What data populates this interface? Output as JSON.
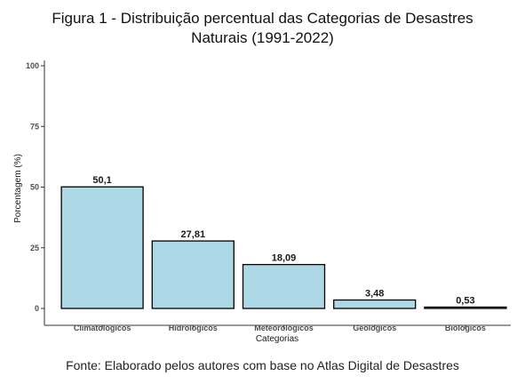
{
  "figure": {
    "title_line1": "Figura 1 - Distribuição percentual das Categorias de Desastres",
    "title_line2": "Naturais (1991-2022)",
    "source": "Fonte: Elaborado pelos autores com base no Atlas Digital de Desastres"
  },
  "chart_data": {
    "type": "bar",
    "categories": [
      "Climatológicos",
      "Hidrológicos",
      "Meteorológicos",
      "Geológicos",
      "Biológicos"
    ],
    "values": [
      50.1,
      27.81,
      18.09,
      3.48,
      0.53
    ],
    "data_labels": [
      "50,1",
      "27,81",
      "18,09",
      "3,48",
      "0,53"
    ],
    "xlabel": "Categorias",
    "ylabel": "Porcentagem (%)",
    "ylim": [
      0,
      100
    ],
    "yticks": [
      0,
      25,
      50,
      75,
      100
    ],
    "grid": false,
    "bar_fill": "#add8e6",
    "bar_stroke": "#000000"
  }
}
